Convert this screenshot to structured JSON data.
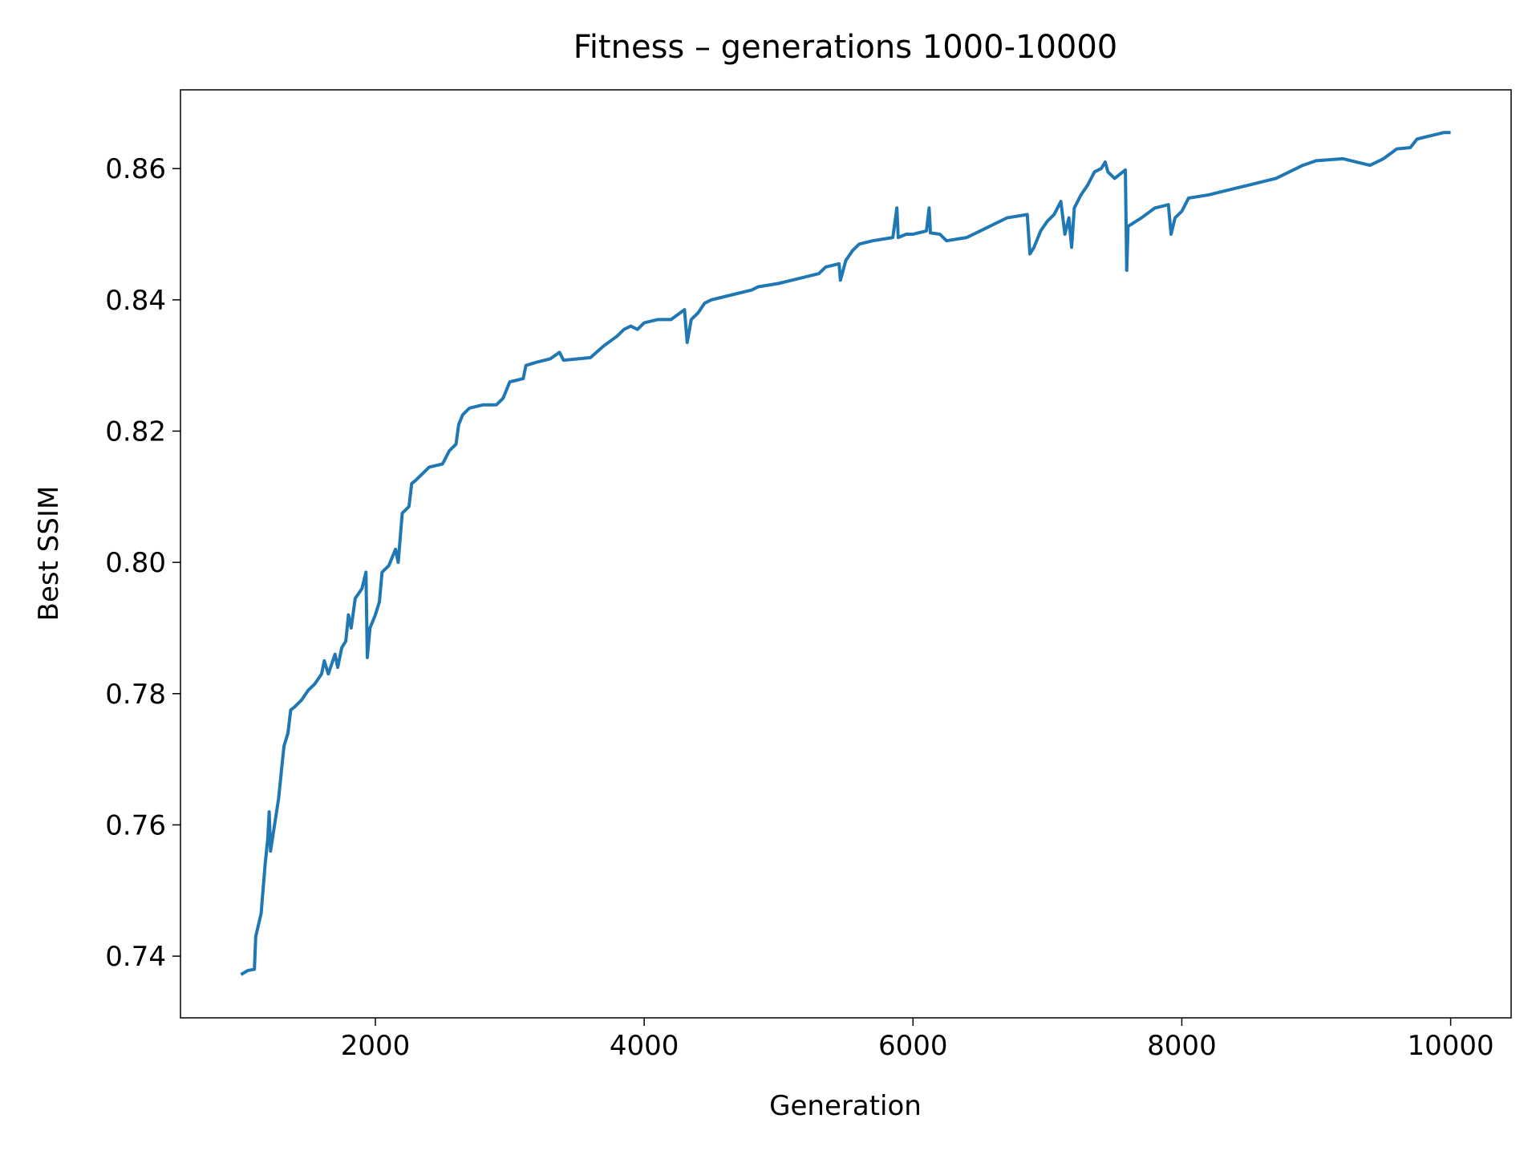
{
  "chart_data": {
    "type": "line",
    "title": "Fitness – generations 1000-10000",
    "x_label": "Generation",
    "y_label": "Best SSIM",
    "xlim": [
      550,
      10450
    ],
    "ylim": [
      0.7306,
      0.872
    ],
    "xticks": [
      2000,
      4000,
      6000,
      8000,
      10000
    ],
    "yticks": [
      0.74,
      0.76,
      0.78,
      {
        "value": 0.8,
        "label": "0.80"
      },
      0.82,
      0.84,
      0.86
    ],
    "series": [
      {
        "name": "Best SSIM",
        "color": "#1f77b4",
        "x": [
          1000,
          1050,
          1100,
          1110,
          1150,
          1180,
          1200,
          1210,
          1220,
          1250,
          1280,
          1300,
          1320,
          1350,
          1370,
          1400,
          1450,
          1500,
          1550,
          1600,
          1620,
          1650,
          1700,
          1720,
          1750,
          1780,
          1800,
          1820,
          1850,
          1900,
          1930,
          1940,
          1960,
          2000,
          2030,
          2050,
          2100,
          2150,
          2170,
          2200,
          2250,
          2270,
          2300,
          2350,
          2400,
          2500,
          2550,
          2600,
          2620,
          2650,
          2700,
          2800,
          2900,
          2950,
          3000,
          3100,
          3120,
          3200,
          3300,
          3370,
          3400,
          3500,
          3600,
          3700,
          3800,
          3850,
          3900,
          3950,
          4000,
          4100,
          4200,
          4300,
          4320,
          4350,
          4400,
          4450,
          4500,
          4600,
          4800,
          4850,
          5000,
          5100,
          5200,
          5300,
          5350,
          5450,
          5460,
          5500,
          5550,
          5600,
          5700,
          5850,
          5880,
          5890,
          5950,
          6000,
          6100,
          6120,
          6130,
          6200,
          6250,
          6400,
          6500,
          6600,
          6700,
          6850,
          6870,
          6900,
          6950,
          7000,
          7050,
          7100,
          7130,
          7160,
          7180,
          7200,
          7250,
          7300,
          7350,
          7400,
          7430,
          7450,
          7500,
          7580,
          7590,
          7600,
          7700,
          7800,
          7900,
          7920,
          7950,
          8000,
          8050,
          8200,
          8300,
          8400,
          8500,
          8600,
          8700,
          8800,
          8900,
          9000,
          9200,
          9300,
          9400,
          9500,
          9600,
          9700,
          9750,
          9850,
          9950,
          10000
        ],
        "values": [
          0.7372,
          0.7378,
          0.738,
          0.743,
          0.7465,
          0.754,
          0.758,
          0.762,
          0.756,
          0.76,
          0.764,
          0.768,
          0.772,
          0.774,
          0.7775,
          0.778,
          0.779,
          0.7805,
          0.7815,
          0.783,
          0.785,
          0.783,
          0.786,
          0.784,
          0.787,
          0.788,
          0.792,
          0.79,
          0.7945,
          0.796,
          0.7985,
          0.7855,
          0.79,
          0.792,
          0.794,
          0.7985,
          0.7995,
          0.802,
          0.8,
          0.8075,
          0.8085,
          0.812,
          0.8125,
          0.8135,
          0.8145,
          0.815,
          0.817,
          0.818,
          0.821,
          0.8225,
          0.8235,
          0.824,
          0.824,
          0.825,
          0.8275,
          0.828,
          0.83,
          0.8305,
          0.831,
          0.832,
          0.8308,
          0.831,
          0.8312,
          0.833,
          0.8345,
          0.8355,
          0.836,
          0.8355,
          0.8365,
          0.837,
          0.837,
          0.8385,
          0.8335,
          0.837,
          0.838,
          0.8395,
          0.84,
          0.8405,
          0.8415,
          0.842,
          0.8425,
          0.843,
          0.8435,
          0.844,
          0.845,
          0.8455,
          0.843,
          0.846,
          0.8475,
          0.8485,
          0.849,
          0.8495,
          0.854,
          0.8495,
          0.85,
          0.85,
          0.8505,
          0.854,
          0.8502,
          0.85,
          0.849,
          0.8495,
          0.8505,
          0.8515,
          0.8525,
          0.853,
          0.847,
          0.848,
          0.8505,
          0.852,
          0.853,
          0.855,
          0.85,
          0.8525,
          0.848,
          0.854,
          0.856,
          0.8575,
          0.8595,
          0.86,
          0.861,
          0.8595,
          0.8585,
          0.8598,
          0.8445,
          0.8512,
          0.8525,
          0.854,
          0.8545,
          0.85,
          0.8525,
          0.8535,
          0.8555,
          0.856,
          0.8565,
          0.857,
          0.8575,
          0.858,
          0.8585,
          0.8595,
          0.8605,
          0.8612,
          0.8615,
          0.861,
          0.8605,
          0.8615,
          0.863,
          0.8632,
          0.8645,
          0.865,
          0.8655,
          0.8655
        ]
      }
    ]
  }
}
